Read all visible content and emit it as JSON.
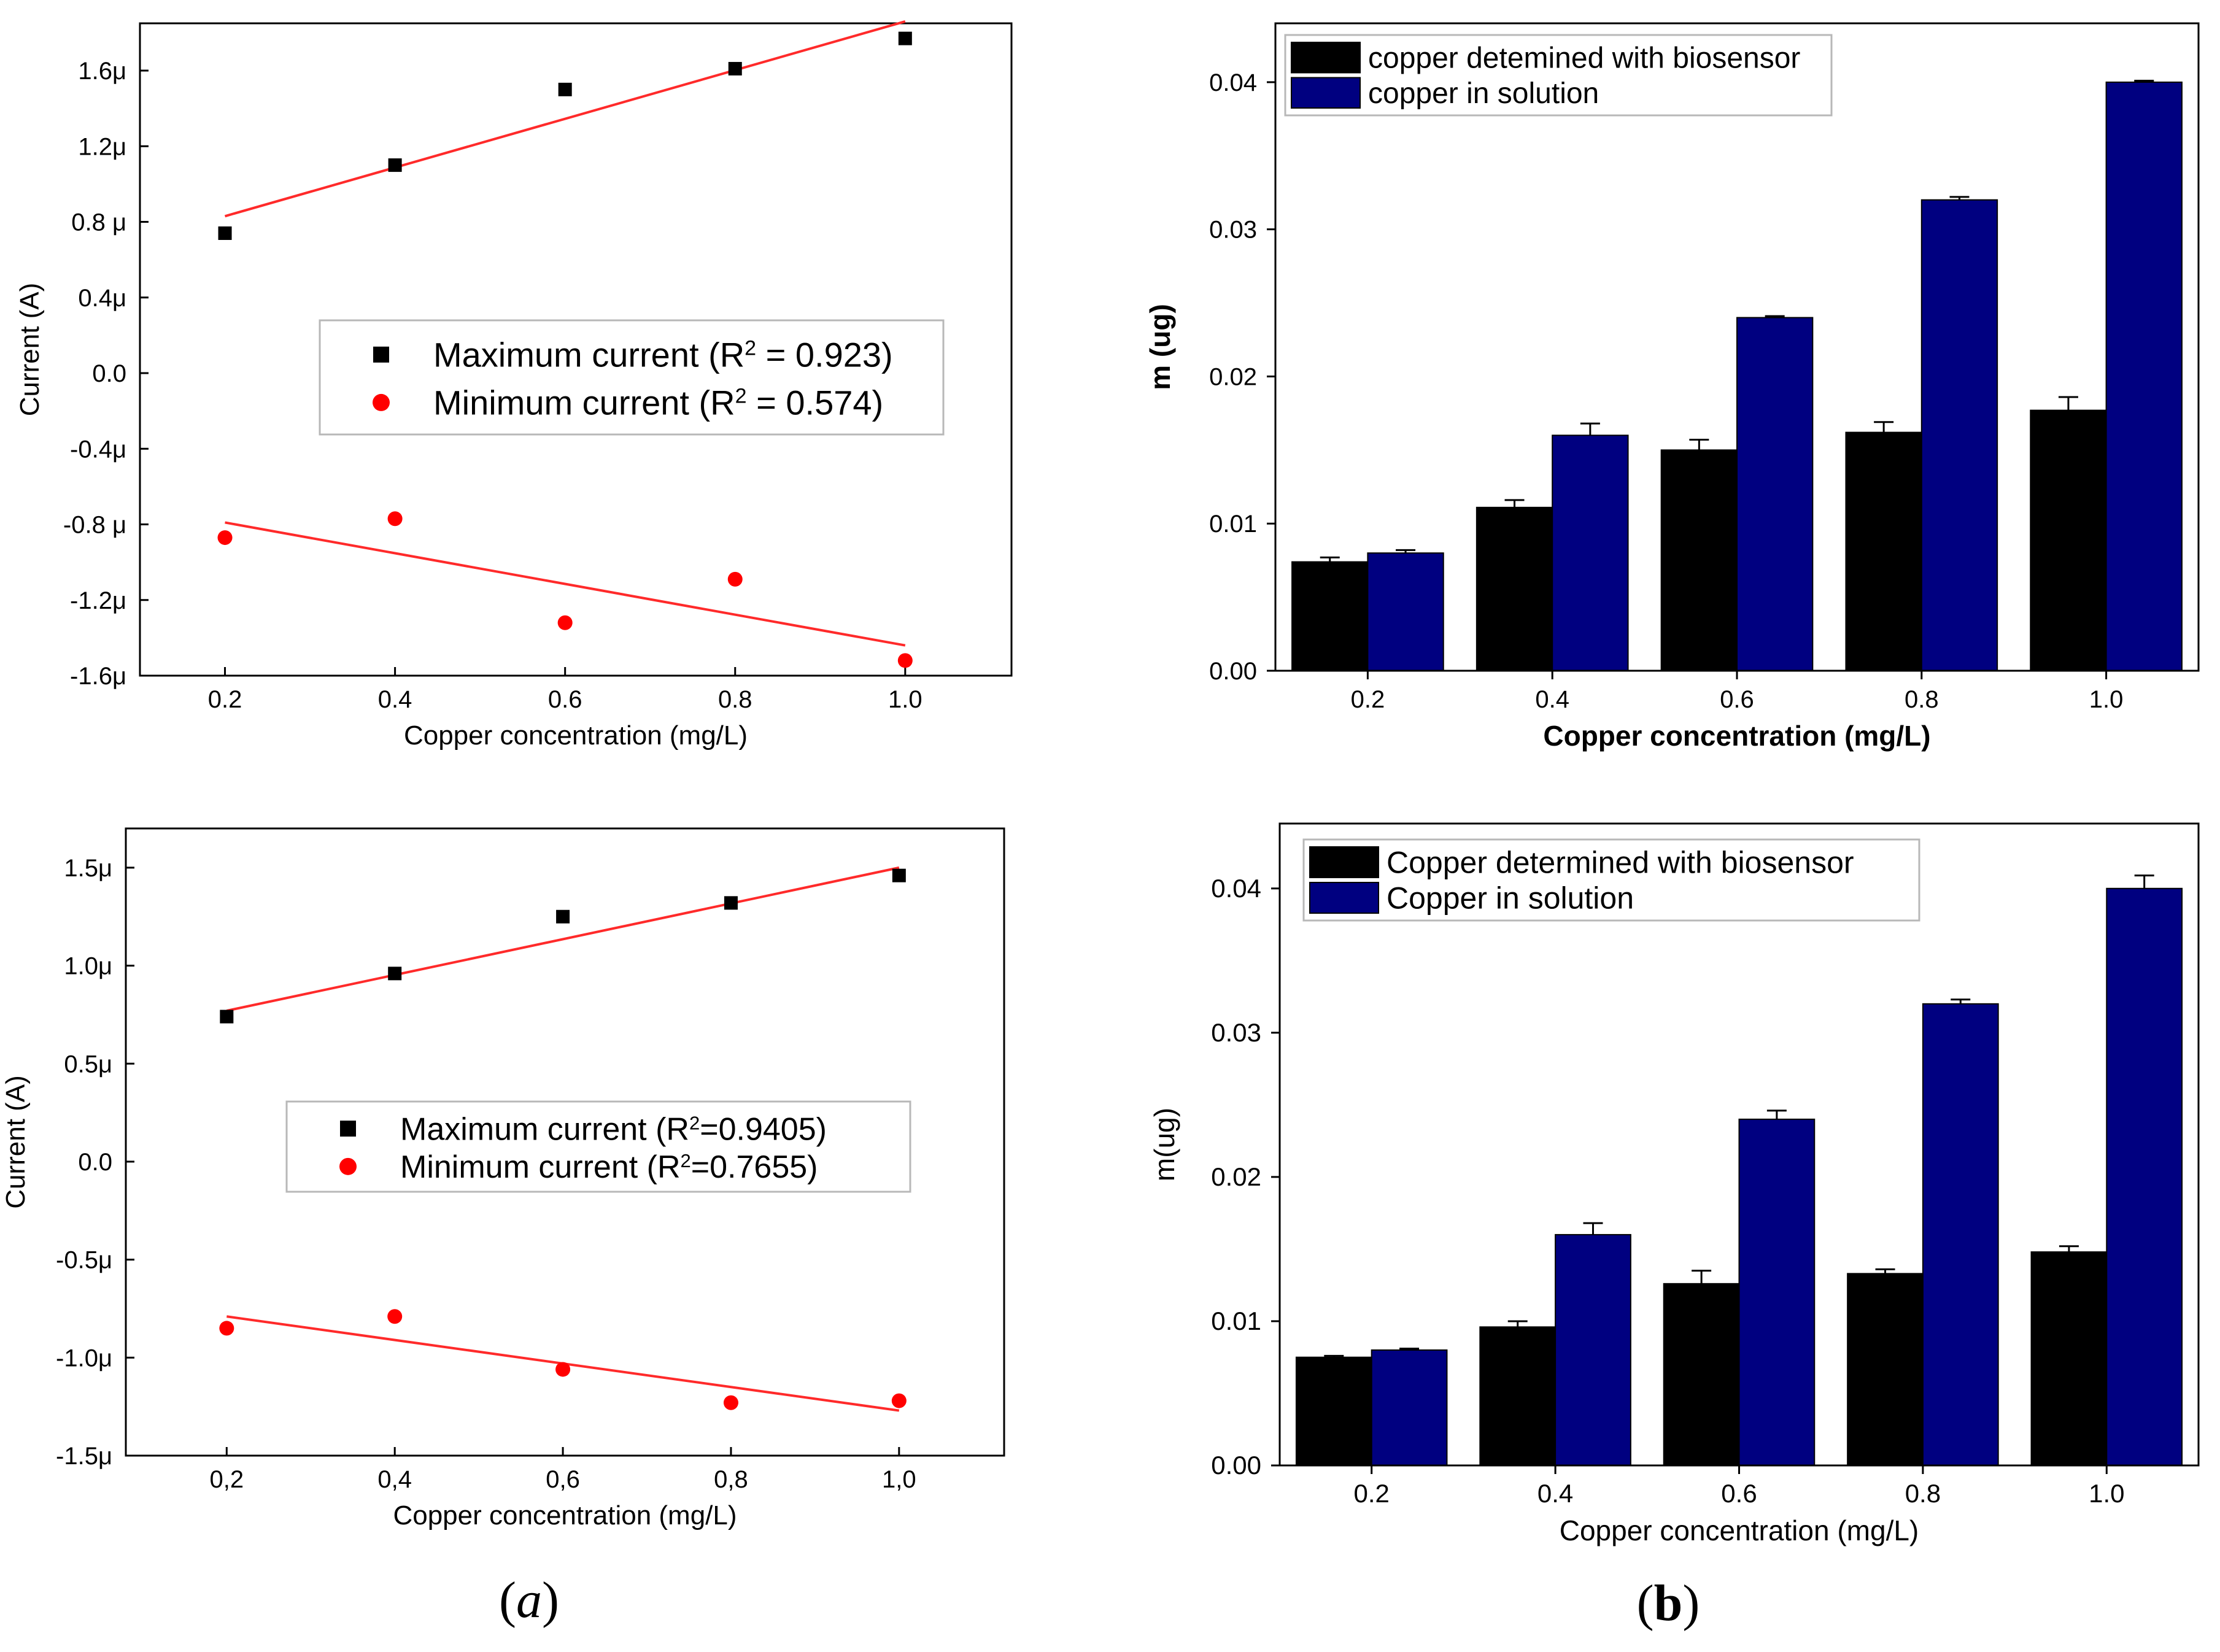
{
  "figure": {
    "panel_labels": [
      {
        "open": "(",
        "letter": "a",
        "close": ")"
      },
      {
        "open": "(",
        "letter": "b",
        "close": ")"
      }
    ]
  },
  "colors": {
    "max_marker": "#000000",
    "min_marker": "#ff0000",
    "fit_line": "#ff2a2a",
    "bar_biosensor": "#000000",
    "bar_solution": "#000080",
    "axis": "#000000"
  },
  "chart_data": [
    {
      "id": "a-top",
      "type": "scatter",
      "title": "",
      "xlabel": "Copper concentration (mg/L)",
      "ylabel": "Current (A)",
      "xlim": [
        0.1,
        1.125
      ],
      "ylim": [
        -1.6,
        1.85
      ],
      "xticks": [
        0.2,
        0.4,
        0.6,
        0.8,
        1.0
      ],
      "xtick_labels": [
        "0.2",
        "0.4",
        "0.6",
        "0.8",
        "1.0"
      ],
      "yticks": [
        1.6,
        1.2,
        0.8,
        0.4,
        0.0,
        -0.4,
        -0.8,
        -1.2,
        -1.6
      ],
      "ytick_labels": [
        "1.6μ",
        "1.2μ",
        "0.8 μ",
        "0.4μ",
        "0.0",
        "-0.4μ",
        "-0.8 μ",
        "-1.2μ",
        "-1.6μ"
      ],
      "legend_position": "center",
      "series": [
        {
          "name": "Maximum current (R",
          "sup": "2",
          "name_end": " = 0.923)",
          "marker": "square",
          "x": [
            0.2,
            0.4,
            0.6,
            0.8,
            1.0
          ],
          "y": [
            0.74,
            1.1,
            1.5,
            1.61,
            1.77
          ],
          "fit": {
            "x": [
              0.2,
              1.0
            ],
            "y": [
              0.83,
              1.86
            ]
          }
        },
        {
          "name": "Minimum current (R",
          "sup": "2",
          "name_end": " = 0.574)",
          "marker": "circle",
          "x": [
            0.2,
            0.4,
            0.6,
            0.8,
            1.0
          ],
          "y": [
            -0.87,
            -0.77,
            -1.32,
            -1.09,
            -1.52
          ],
          "fit": {
            "x": [
              0.2,
              1.0
            ],
            "y": [
              -0.79,
              -1.44
            ]
          }
        }
      ]
    },
    {
      "id": "a-bottom",
      "type": "scatter",
      "title": "",
      "xlabel": "Copper concentration (mg/L)",
      "ylabel": "Current (A)",
      "xlim": [
        0.08,
        1.125
      ],
      "ylim": [
        -1.5,
        1.7
      ],
      "xticks": [
        0.2,
        0.4,
        0.6,
        0.8,
        1.0
      ],
      "xtick_labels": [
        "0,2",
        "0,4",
        "0,6",
        "0,8",
        "1,0"
      ],
      "yticks": [
        1.5,
        1.0,
        0.5,
        0.0,
        -0.5,
        -1.0,
        -1.5
      ],
      "ytick_labels": [
        "1.5μ",
        "1.0μ",
        "0.5μ",
        "0.0",
        "-0.5μ",
        "-1.0μ",
        "-1.5μ"
      ],
      "legend_position": "center",
      "series": [
        {
          "name": "Maximum current (R",
          "sup": "2",
          "name_end": "=0.9405)",
          "marker": "square",
          "x": [
            0.2,
            0.4,
            0.6,
            0.8,
            1.0
          ],
          "y": [
            0.74,
            0.96,
            1.25,
            1.32,
            1.46
          ],
          "fit": {
            "x": [
              0.2,
              1.0
            ],
            "y": [
              0.77,
              1.5
            ]
          }
        },
        {
          "name": "Minimum current (R",
          "sup": "2",
          "name_end": "=0.7655)",
          "marker": "circle",
          "x": [
            0.2,
            0.4,
            0.6,
            0.8,
            1.0
          ],
          "y": [
            -0.85,
            -0.79,
            -1.06,
            -1.23,
            -1.22
          ],
          "fit": {
            "x": [
              0.2,
              1.0
            ],
            "y": [
              -0.79,
              -1.27
            ]
          }
        }
      ]
    },
    {
      "id": "b-top",
      "type": "bar",
      "title": "",
      "xlabel": "Copper concentration (mg/L)",
      "ylabel": "m (ug)",
      "label_bold": true,
      "ylim": [
        0,
        0.044
      ],
      "categories": [
        "0.2",
        "0.4",
        "0.6",
        "0.8",
        "1.0"
      ],
      "yticks": [
        0,
        0.01,
        0.02,
        0.03,
        0.04
      ],
      "ytick_labels": [
        "0.00",
        "0.01",
        "0.02",
        "0.03",
        "0.04"
      ],
      "legend_position": "top-left",
      "series": [
        {
          "name": "copper detemined with biosensor",
          "colorKey": "bar_biosensor",
          "values": [
            0.0074,
            0.0111,
            0.015,
            0.0162,
            0.0177
          ],
          "errors": [
            0.0003,
            0.0005,
            0.0007,
            0.0007,
            0.0009
          ]
        },
        {
          "name": "copper in solution",
          "colorKey": "bar_solution",
          "values": [
            0.008,
            0.016,
            0.024,
            0.032,
            0.04
          ],
          "errors": [
            0.0002,
            0.0008,
            0.0001,
            0.0002,
            0.0001
          ]
        }
      ]
    },
    {
      "id": "b-bottom",
      "type": "bar",
      "title": "",
      "xlabel": "Copper concentration (mg/L)",
      "ylabel": "m(ug)",
      "label_bold": false,
      "ylim": [
        0,
        0.0445
      ],
      "categories": [
        "0.2",
        "0.4",
        "0.6",
        "0.8",
        "1.0"
      ],
      "yticks": [
        0,
        0.01,
        0.02,
        0.03,
        0.04
      ],
      "ytick_labels": [
        "0.00",
        "0.01",
        "0.02",
        "0.03",
        "0.04"
      ],
      "legend_position": "top-left",
      "series": [
        {
          "name": "Copper determined with biosensor",
          "colorKey": "bar_biosensor",
          "values": [
            0.0075,
            0.0096,
            0.0126,
            0.0133,
            0.0148
          ],
          "errors": [
            0.0001,
            0.0004,
            0.0009,
            0.0003,
            0.0004
          ]
        },
        {
          "name": "Copper in solution",
          "colorKey": "bar_solution",
          "values": [
            0.008,
            0.016,
            0.024,
            0.032,
            0.04
          ],
          "errors": [
            0.0001,
            0.0008,
            0.0006,
            0.0003,
            0.0009
          ]
        }
      ]
    }
  ]
}
